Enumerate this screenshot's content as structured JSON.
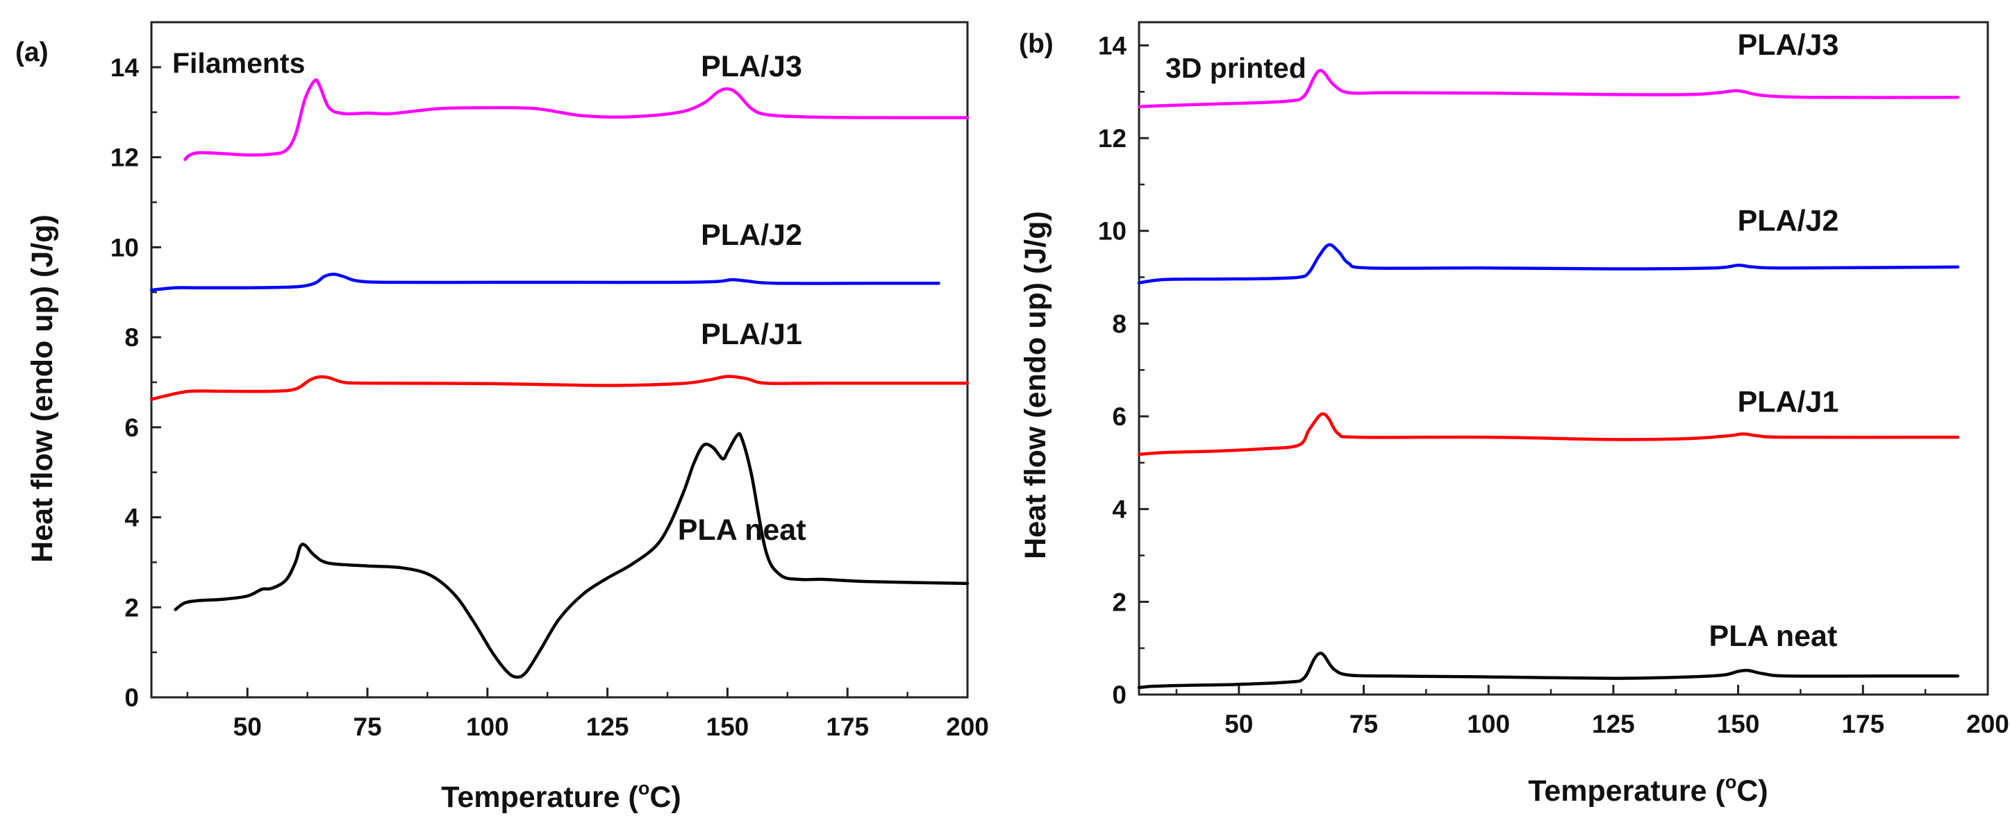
{
  "chart_data": [
    {
      "type": "line",
      "panel_tag": "(a)",
      "title": "Filaments",
      "xlabel_main": "Temperature (",
      "xlabel_deg": "o",
      "xlabel_end": "C)",
      "ylabel": "Heat flow (endo up) (J/g)",
      "xlim": [
        30,
        200
      ],
      "ylim": [
        0,
        15
      ],
      "xticks": [
        "50",
        "75",
        "100",
        "125",
        "150",
        "175",
        "200"
      ],
      "yticks": [
        "0",
        "2",
        "4",
        "6",
        "8",
        "10",
        "12",
        "14"
      ],
      "series": [
        {
          "name": "PLA/J3",
          "color": "#ff00ff",
          "points": [
            [
              37,
              11.95
            ],
            [
              38,
              12.05
            ],
            [
              40,
              12.1
            ],
            [
              45,
              12.08
            ],
            [
              50,
              12.05
            ],
            [
              55,
              12.07
            ],
            [
              58,
              12.15
            ],
            [
              60,
              12.5
            ],
            [
              62,
              13.3
            ],
            [
              64,
              13.7
            ],
            [
              65,
              13.6
            ],
            [
              67,
              13.1
            ],
            [
              70,
              12.97
            ],
            [
              75,
              12.98
            ],
            [
              80,
              12.97
            ],
            [
              90,
              13.08
            ],
            [
              100,
              13.1
            ],
            [
              110,
              13.08
            ],
            [
              120,
              12.92
            ],
            [
              130,
              12.9
            ],
            [
              140,
              13.0
            ],
            [
              145,
              13.2
            ],
            [
              148,
              13.45
            ],
            [
              150,
              13.52
            ],
            [
              152,
              13.42
            ],
            [
              155,
              13.08
            ],
            [
              158,
              12.95
            ],
            [
              165,
              12.9
            ],
            [
              180,
              12.88
            ],
            [
              200,
              12.88
            ]
          ]
        },
        {
          "name": "PLA/J2",
          "color": "#0000ff",
          "points": [
            [
              30,
              9.05
            ],
            [
              35,
              9.1
            ],
            [
              40,
              9.1
            ],
            [
              50,
              9.1
            ],
            [
              60,
              9.12
            ],
            [
              64,
              9.2
            ],
            [
              66,
              9.35
            ],
            [
              68,
              9.4
            ],
            [
              70,
              9.35
            ],
            [
              73,
              9.25
            ],
            [
              80,
              9.22
            ],
            [
              100,
              9.22
            ],
            [
              120,
              9.22
            ],
            [
              140,
              9.22
            ],
            [
              148,
              9.24
            ],
            [
              151,
              9.28
            ],
            [
              154,
              9.25
            ],
            [
              160,
              9.2
            ],
            [
              180,
              9.2
            ],
            [
              194,
              9.2
            ]
          ]
        },
        {
          "name": "PLA/J1",
          "color": "#ff0000",
          "points": [
            [
              30,
              6.62
            ],
            [
              33,
              6.7
            ],
            [
              38,
              6.8
            ],
            [
              45,
              6.8
            ],
            [
              55,
              6.8
            ],
            [
              60,
              6.85
            ],
            [
              63,
              7.05
            ],
            [
              65,
              7.12
            ],
            [
              67,
              7.1
            ],
            [
              70,
              7.0
            ],
            [
              75,
              6.98
            ],
            [
              100,
              6.97
            ],
            [
              125,
              6.93
            ],
            [
              140,
              6.97
            ],
            [
              146,
              7.05
            ],
            [
              150,
              7.13
            ],
            [
              154,
              7.08
            ],
            [
              158,
              6.98
            ],
            [
              170,
              6.98
            ],
            [
              200,
              6.98
            ]
          ]
        },
        {
          "name": "PLA neat",
          "color": "#000000",
          "points": [
            [
              35,
              1.95
            ],
            [
              37,
              2.1
            ],
            [
              40,
              2.15
            ],
            [
              45,
              2.18
            ],
            [
              50,
              2.25
            ],
            [
              53,
              2.4
            ],
            [
              55,
              2.42
            ],
            [
              58,
              2.6
            ],
            [
              60,
              3.0
            ],
            [
              61,
              3.35
            ],
            [
              62,
              3.38
            ],
            [
              64,
              3.15
            ],
            [
              67,
              2.98
            ],
            [
              75,
              2.92
            ],
            [
              82,
              2.88
            ],
            [
              88,
              2.72
            ],
            [
              93,
              2.3
            ],
            [
              97,
              1.7
            ],
            [
              101,
              1.0
            ],
            [
              104,
              0.58
            ],
            [
              106,
              0.45
            ],
            [
              108,
              0.55
            ],
            [
              111,
              1.05
            ],
            [
              115,
              1.75
            ],
            [
              120,
              2.3
            ],
            [
              125,
              2.65
            ],
            [
              130,
              2.95
            ],
            [
              135,
              3.35
            ],
            [
              138,
              3.85
            ],
            [
              141,
              4.6
            ],
            [
              143,
              5.2
            ],
            [
              145,
              5.6
            ],
            [
              147,
              5.55
            ],
            [
              149,
              5.3
            ],
            [
              150,
              5.45
            ],
            [
              152,
              5.82
            ],
            [
              153,
              5.75
            ],
            [
              155,
              4.95
            ],
            [
              158,
              3.25
            ],
            [
              161,
              2.72
            ],
            [
              165,
              2.62
            ],
            [
              170,
              2.62
            ],
            [
              180,
              2.57
            ],
            [
              200,
              2.53
            ]
          ]
        }
      ],
      "labels": [
        {
          "name": "PLA/J3",
          "x": 155,
          "y": 13.8
        },
        {
          "name": "PLA/J2",
          "x": 155,
          "y": 10.05
        },
        {
          "name": "PLA/J1",
          "x": 155,
          "y": 7.85
        },
        {
          "name": "PLA neat",
          "x": 153,
          "y": 3.5
        }
      ]
    },
    {
      "type": "line",
      "panel_tag": "(b)",
      "title": "3D printed",
      "xlabel_main": "Temperature (",
      "xlabel_deg": "o",
      "xlabel_end": "C)",
      "ylabel": "Heat flow (endo up) (J/g)",
      "xlim": [
        30,
        200
      ],
      "ylim": [
        0,
        14.5
      ],
      "xticks": [
        "50",
        "75",
        "100",
        "125",
        "150",
        "175",
        "200"
      ],
      "yticks": [
        "0",
        "2",
        "4",
        "6",
        "8",
        "10",
        "12",
        "14"
      ],
      "series": [
        {
          "name": "PLA/J3",
          "color": "#ff00ff",
          "points": [
            [
              30,
              12.68
            ],
            [
              40,
              12.72
            ],
            [
              50,
              12.75
            ],
            [
              60,
              12.8
            ],
            [
              63,
              12.9
            ],
            [
              65,
              13.3
            ],
            [
              66,
              13.45
            ],
            [
              67,
              13.42
            ],
            [
              69,
              13.15
            ],
            [
              72,
              12.98
            ],
            [
              80,
              12.98
            ],
            [
              100,
              12.97
            ],
            [
              125,
              12.94
            ],
            [
              140,
              12.94
            ],
            [
              146,
              12.98
            ],
            [
              150,
              13.02
            ],
            [
              155,
              12.92
            ],
            [
              165,
              12.88
            ],
            [
              194,
              12.88
            ]
          ]
        },
        {
          "name": "PLA/J2",
          "color": "#0000ff",
          "points": [
            [
              30,
              8.88
            ],
            [
              35,
              8.95
            ],
            [
              45,
              8.96
            ],
            [
              55,
              8.97
            ],
            [
              62,
              9.0
            ],
            [
              64,
              9.1
            ],
            [
              66,
              9.45
            ],
            [
              68,
              9.7
            ],
            [
              70,
              9.55
            ],
            [
              72,
              9.3
            ],
            [
              76,
              9.2
            ],
            [
              100,
              9.2
            ],
            [
              125,
              9.18
            ],
            [
              145,
              9.2
            ],
            [
              150,
              9.26
            ],
            [
              153,
              9.22
            ],
            [
              160,
              9.2
            ],
            [
              194,
              9.22
            ]
          ]
        },
        {
          "name": "PLA/J1",
          "color": "#ff0000",
          "points": [
            [
              30,
              5.18
            ],
            [
              35,
              5.22
            ],
            [
              45,
              5.25
            ],
            [
              55,
              5.3
            ],
            [
              62,
              5.38
            ],
            [
              64,
              5.7
            ],
            [
              66,
              6.0
            ],
            [
              67,
              6.05
            ],
            [
              68,
              5.95
            ],
            [
              70,
              5.62
            ],
            [
              74,
              5.55
            ],
            [
              100,
              5.55
            ],
            [
              125,
              5.5
            ],
            [
              140,
              5.52
            ],
            [
              148,
              5.58
            ],
            [
              151,
              5.62
            ],
            [
              154,
              5.58
            ],
            [
              160,
              5.55
            ],
            [
              194,
              5.55
            ]
          ]
        },
        {
          "name": "PLA neat",
          "color": "#000000",
          "points": [
            [
              30,
              0.15
            ],
            [
              33,
              0.18
            ],
            [
              40,
              0.2
            ],
            [
              50,
              0.22
            ],
            [
              60,
              0.27
            ],
            [
              63,
              0.35
            ],
            [
              65,
              0.75
            ],
            [
              66,
              0.88
            ],
            [
              67,
              0.85
            ],
            [
              69,
              0.55
            ],
            [
              72,
              0.42
            ],
            [
              80,
              0.4
            ],
            [
              100,
              0.38
            ],
            [
              125,
              0.35
            ],
            [
              140,
              0.38
            ],
            [
              147,
              0.42
            ],
            [
              150,
              0.5
            ],
            [
              152,
              0.52
            ],
            [
              155,
              0.45
            ],
            [
              160,
              0.4
            ],
            [
              180,
              0.4
            ],
            [
              194,
              0.4
            ]
          ]
        }
      ],
      "labels": [
        {
          "name": "PLA/J3",
          "x": 160,
          "y": 13.8
        },
        {
          "name": "PLA/J2",
          "x": 160,
          "y": 10.0
        },
        {
          "name": "PLA/J1",
          "x": 160,
          "y": 6.1
        },
        {
          "name": "PLA neat",
          "x": 157,
          "y": 1.05
        }
      ]
    }
  ]
}
